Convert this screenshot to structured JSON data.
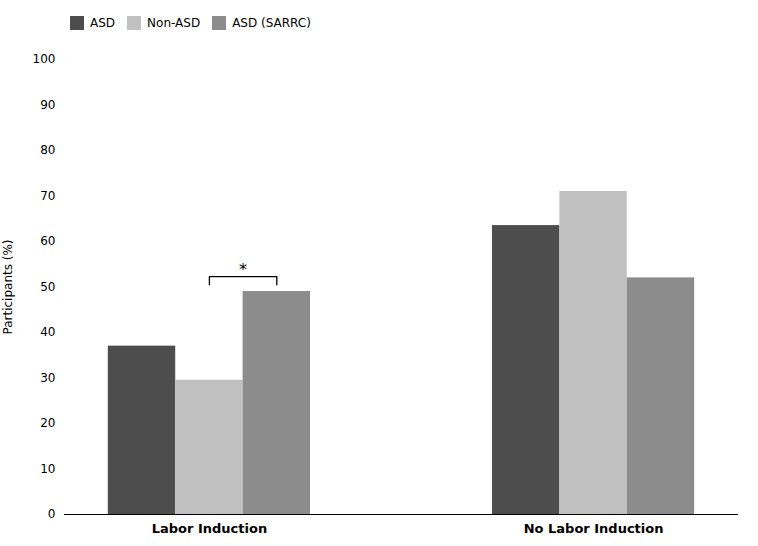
{
  "chart_data": {
    "type": "bar",
    "categories": [
      "Labor Induction",
      "No Labor Induction"
    ],
    "series": [
      {
        "name": "ASD",
        "color": "#4d4d4d",
        "values": [
          37,
          63.5
        ]
      },
      {
        "name": "Non-ASD",
        "color": "#c0c0c0",
        "values": [
          29.5,
          71
        ]
      },
      {
        "name": "ASD (SARRC)",
        "color": "#8c8c8c",
        "values": [
          49,
          52
        ]
      }
    ],
    "ylabel": "Participants (%)",
    "ylim": [
      0,
      100
    ],
    "yticks": [
      0,
      10,
      20,
      30,
      40,
      50,
      60,
      70,
      80,
      90,
      100
    ],
    "grid": false,
    "legend": "upper left",
    "annotations": [
      {
        "text": "*",
        "category": "Labor Induction",
        "between": [
          "Non-ASD",
          "ASD (SARRC)"
        ]
      }
    ]
  }
}
